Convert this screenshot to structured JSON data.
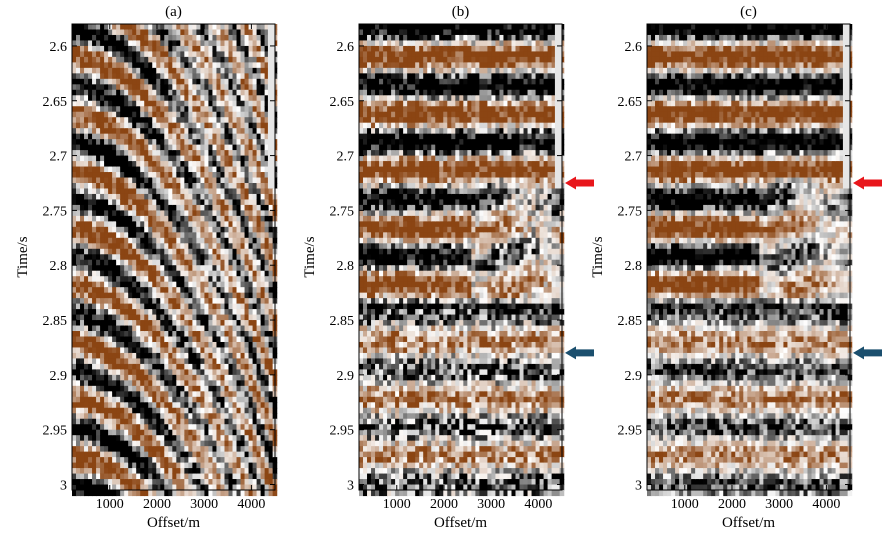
{
  "chart_data": [
    {
      "type": "heatmap",
      "panel_label": "(a)",
      "xlabel": "Offset/m",
      "ylabel": "Time/s",
      "x_ticks": [
        1000,
        2000,
        3000,
        4000
      ],
      "y_ticks": [
        2.6,
        2.65,
        2.7,
        2.75,
        2.8,
        2.85,
        2.9,
        2.95,
        3
      ],
      "xlim": [
        200,
        4500
      ],
      "ylim": [
        2.58,
        3.005
      ],
      "colormap": [
        "#000000",
        "#ffffff",
        "#8b4513"
      ],
      "arrows": []
    },
    {
      "type": "heatmap",
      "panel_label": "(b)",
      "xlabel": "Offset/m",
      "ylabel": "Time/s",
      "x_ticks": [
        1000,
        2000,
        3000,
        4000
      ],
      "y_ticks": [
        2.6,
        2.65,
        2.7,
        2.75,
        2.8,
        2.85,
        2.9,
        2.95,
        3
      ],
      "xlim": [
        200,
        4500
      ],
      "ylim": [
        2.58,
        3.005
      ],
      "colormap": [
        "#000000",
        "#ffffff",
        "#8b4513"
      ],
      "arrows": [
        {
          "color": "#e8161b",
          "time": 2.725
        },
        {
          "color": "#1b4f6e",
          "time": 2.88
        }
      ]
    },
    {
      "type": "heatmap",
      "panel_label": "(c)",
      "xlabel": "Offset/m",
      "ylabel": "Time/s",
      "x_ticks": [
        1000,
        2000,
        3000,
        4000
      ],
      "y_ticks": [
        2.6,
        2.65,
        2.7,
        2.75,
        2.8,
        2.85,
        2.9,
        2.95,
        3
      ],
      "xlim": [
        200,
        4500
      ],
      "ylim": [
        2.58,
        3.005
      ],
      "colormap": [
        "#000000",
        "#ffffff",
        "#8b4513"
      ],
      "arrows": [
        {
          "color": "#e8161b",
          "time": 2.725
        },
        {
          "color": "#1b4f6e",
          "time": 2.88
        }
      ]
    }
  ]
}
